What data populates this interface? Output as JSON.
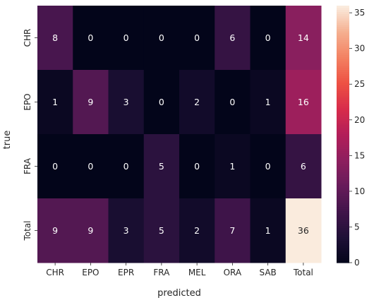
{
  "chart_data": {
    "type": "heatmap",
    "title": "",
    "xlabel": "predicted",
    "ylabel": "true",
    "x_categories": [
      "CHR",
      "EPO",
      "EPR",
      "FRA",
      "MEL",
      "ORA",
      "SAB",
      "Total"
    ],
    "y_categories": [
      "CHR",
      "EPO",
      "FRA",
      "Total"
    ],
    "values": [
      [
        8,
        0,
        0,
        0,
        0,
        6,
        0,
        14
      ],
      [
        1,
        9,
        3,
        0,
        2,
        0,
        1,
        16
      ],
      [
        0,
        0,
        0,
        5,
        0,
        1,
        0,
        6
      ],
      [
        9,
        9,
        3,
        5,
        2,
        7,
        1,
        36
      ]
    ],
    "colorbar": {
      "min": 0,
      "max": 36,
      "ticks": [
        0,
        5,
        10,
        15,
        20,
        25,
        30,
        35
      ],
      "colormap": "rocket"
    },
    "annotated": true,
    "grid": false
  }
}
